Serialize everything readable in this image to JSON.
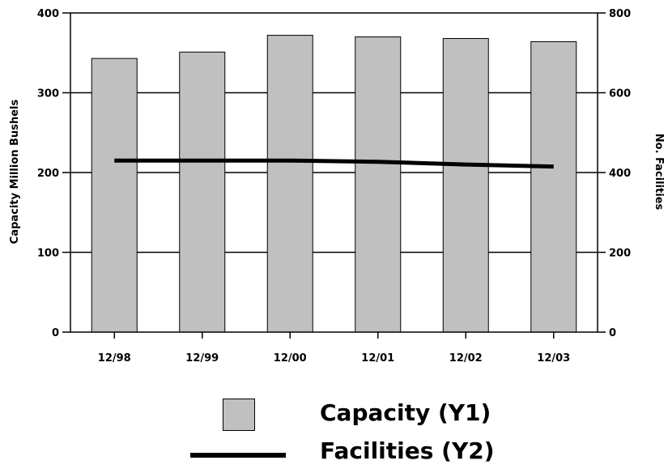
{
  "chart_data": {
    "type": "bar",
    "title": "",
    "categories": [
      "12/98",
      "12/99",
      "12/00",
      "12/01",
      "12/02",
      "12/03"
    ],
    "series": [
      {
        "name": "Capacity (Y1)",
        "type": "bar",
        "axis": "y1",
        "color": "#c0c0c0",
        "values": [
          343,
          351,
          372,
          370,
          368,
          364
        ]
      },
      {
        "name": "Facilities (Y2)",
        "type": "line",
        "axis": "y2",
        "color": "#000000",
        "values": [
          430,
          430,
          430,
          427,
          420,
          415
        ]
      }
    ],
    "ylabel": "Capacity Million Bushels",
    "y2label": "No. Facilities",
    "ylim": [
      0,
      400
    ],
    "y2lim": [
      0,
      800
    ],
    "yticks": [
      0,
      100,
      200,
      300,
      400
    ],
    "y2ticks": [
      0,
      200,
      400,
      600,
      800
    ],
    "legend_position": "bottom",
    "grid": true
  }
}
